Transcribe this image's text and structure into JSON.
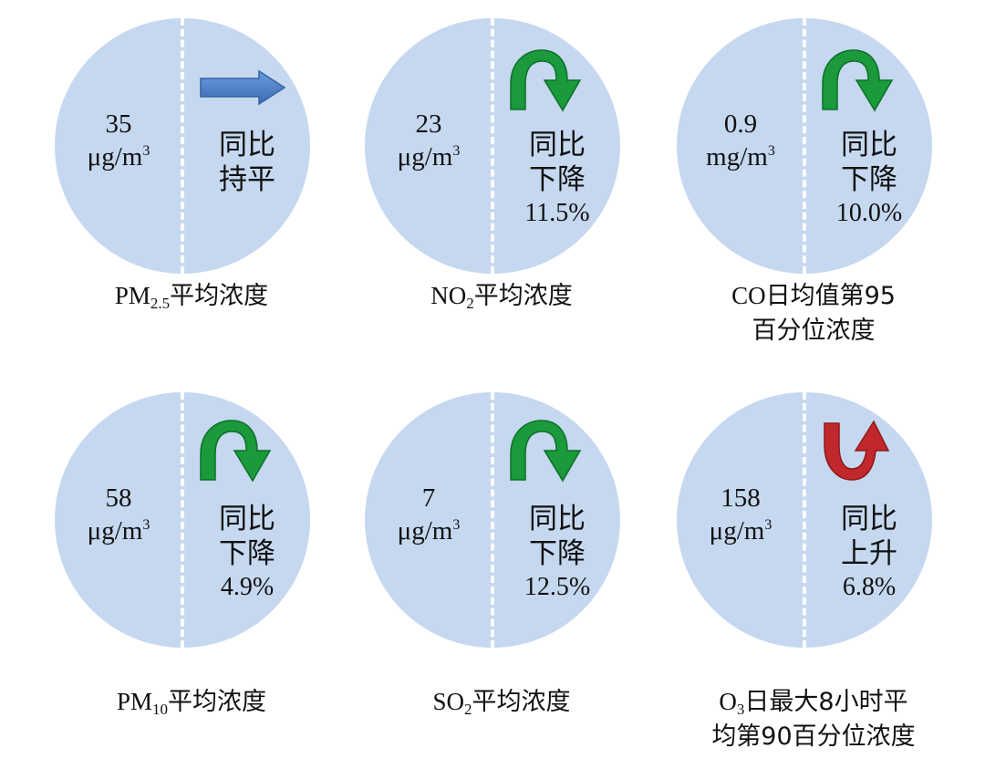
{
  "cards": [
    {
      "value": "35",
      "unit_base": "μg/m",
      "unit_exp": "3",
      "trend1": "同比",
      "trend2": "持平",
      "pct": "",
      "arrow": "right-arrow-icon",
      "arrow_color": "#4a7bc4",
      "label_prefix": "PM",
      "label_sub": "2.5",
      "label_suffix": "平均浓度",
      "label_line2": ""
    },
    {
      "value": "23",
      "unit_base": "μg/m",
      "unit_exp": "3",
      "trend1": "同比",
      "trend2": "下降",
      "pct": "11.5%",
      "arrow": "curved-down-arrow-icon",
      "arrow_color": "#1a9a3a",
      "label_prefix": "NO",
      "label_sub": "2",
      "label_suffix": "平均浓度",
      "label_line2": ""
    },
    {
      "value": "0.9",
      "unit_base": "mg/m",
      "unit_exp": "3",
      "trend1": "同比",
      "trend2": "下降",
      "pct": "10.0%",
      "arrow": "curved-down-arrow-icon",
      "arrow_color": "#1a9a3a",
      "label_prefix": "CO",
      "label_sub": "",
      "label_suffix": "日均值第95",
      "label_line2": "百分位浓度"
    },
    {
      "value": "58",
      "unit_base": "μg/m",
      "unit_exp": "3",
      "trend1": "同比",
      "trend2": "下降",
      "pct": "4.9%",
      "arrow": "curved-down-arrow-icon",
      "arrow_color": "#1a9a3a",
      "label_prefix": "PM",
      "label_sub": "10",
      "label_suffix": "平均浓度",
      "label_line2": ""
    },
    {
      "value": "7",
      "unit_base": "μg/m",
      "unit_exp": "3",
      "trend1": "同比",
      "trend2": "下降",
      "pct": "12.5%",
      "arrow": "curved-down-arrow-icon",
      "arrow_color": "#1a9a3a",
      "label_prefix": "SO",
      "label_sub": "2",
      "label_suffix": "平均浓度",
      "label_line2": ""
    },
    {
      "value": "158",
      "unit_base": "μg/m",
      "unit_exp": "3",
      "trend1": "同比",
      "trend2": "上升",
      "pct": "6.8%",
      "arrow": "curved-up-arrow-icon",
      "arrow_color": "#c0282b",
      "label_prefix": "O",
      "label_sub": "3",
      "label_suffix": "日最大8小时平",
      "label_line2": "均第90百分位浓度"
    }
  ]
}
